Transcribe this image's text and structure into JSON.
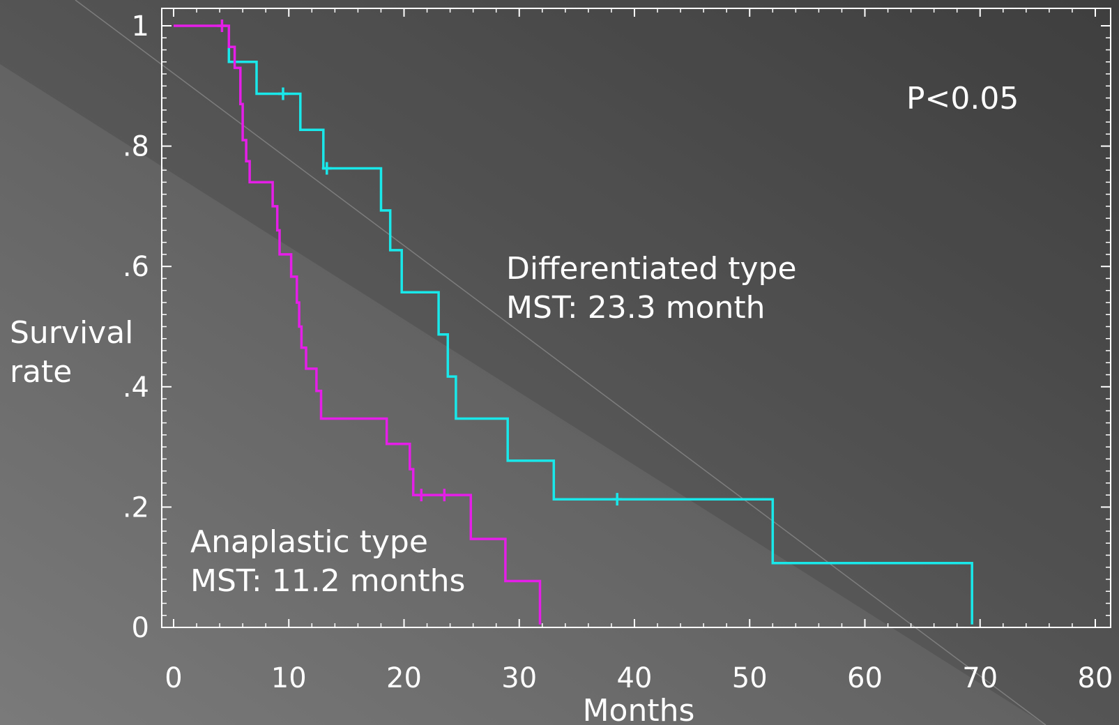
{
  "chart_data": {
    "type": "line",
    "step": true,
    "title": "",
    "xlabel": "Months",
    "ylabel": [
      "Survival",
      "rate"
    ],
    "xlim": [
      0,
      80
    ],
    "ylim": [
      0,
      1
    ],
    "xticks": [
      0,
      10,
      20,
      30,
      40,
      50,
      60,
      70,
      80
    ],
    "xtick_labels": [
      "0",
      "10",
      "20",
      "30",
      "40",
      "50",
      "60",
      "70",
      "80"
    ],
    "yticks": [
      0,
      0.2,
      0.4,
      0.6,
      0.8,
      1
    ],
    "ytick_labels": [
      "0",
      ".2",
      ".4",
      ".6",
      ".8",
      "1"
    ],
    "grid": false,
    "p_value": "P<0.05",
    "colors": {
      "background_light": "#7a7a7a",
      "background_dark": "#474747",
      "axis": "#ffffff",
      "differentiated": "#19e8ea",
      "anaplastic": "#e51ee8"
    },
    "series": [
      {
        "key": "differentiated",
        "color": "#19e8ea",
        "label_lines": [
          "Differentiated type",
          "MST: 23.3 month"
        ],
        "start_x": 4.8,
        "start_y": 0.965,
        "points": [
          [
            4.8,
            0.965
          ],
          [
            4.8,
            0.94
          ],
          [
            7.2,
            0.94
          ],
          [
            7.2,
            0.887
          ],
          [
            11.0,
            0.887
          ],
          [
            11.0,
            0.827
          ],
          [
            13.0,
            0.827
          ],
          [
            13.0,
            0.763
          ],
          [
            18.0,
            0.763
          ],
          [
            18.0,
            0.693
          ],
          [
            18.8,
            0.693
          ],
          [
            18.8,
            0.627
          ],
          [
            19.8,
            0.627
          ],
          [
            19.8,
            0.557
          ],
          [
            23.0,
            0.557
          ],
          [
            23.0,
            0.487
          ],
          [
            23.8,
            0.487
          ],
          [
            23.8,
            0.417
          ],
          [
            24.5,
            0.417
          ],
          [
            24.5,
            0.347
          ],
          [
            29.0,
            0.347
          ],
          [
            29.0,
            0.277
          ],
          [
            33.0,
            0.277
          ],
          [
            33.0,
            0.213
          ],
          [
            52.0,
            0.213
          ],
          [
            52.0,
            0.107
          ],
          [
            69.3,
            0.107
          ],
          [
            69.3,
            0.005
          ]
        ],
        "censored": [
          [
            9.5,
            0.887
          ],
          [
            13.3,
            0.763
          ],
          [
            38.5,
            0.213
          ]
        ]
      },
      {
        "key": "anaplastic",
        "color": "#e51ee8",
        "label_lines": [
          "Anaplastic type",
          "MST: 11.2 months"
        ],
        "start_x": 0,
        "start_y": 1.0,
        "points": [
          [
            0,
            1.0
          ],
          [
            4.8,
            1.0
          ],
          [
            4.8,
            0.965
          ],
          [
            5.3,
            0.965
          ],
          [
            5.3,
            0.93
          ],
          [
            5.8,
            0.93
          ],
          [
            5.8,
            0.87
          ],
          [
            6.0,
            0.87
          ],
          [
            6.0,
            0.81
          ],
          [
            6.3,
            0.81
          ],
          [
            6.3,
            0.775
          ],
          [
            6.6,
            0.775
          ],
          [
            6.6,
            0.74
          ],
          [
            8.6,
            0.74
          ],
          [
            8.6,
            0.7
          ],
          [
            9.0,
            0.7
          ],
          [
            9.0,
            0.66
          ],
          [
            9.2,
            0.66
          ],
          [
            9.2,
            0.62
          ],
          [
            10.2,
            0.62
          ],
          [
            10.2,
            0.583
          ],
          [
            10.7,
            0.583
          ],
          [
            10.7,
            0.54
          ],
          [
            10.9,
            0.54
          ],
          [
            10.9,
            0.5
          ],
          [
            11.1,
            0.5
          ],
          [
            11.1,
            0.465
          ],
          [
            11.5,
            0.465
          ],
          [
            11.5,
            0.43
          ],
          [
            12.4,
            0.43
          ],
          [
            12.4,
            0.393
          ],
          [
            12.8,
            0.393
          ],
          [
            12.8,
            0.347
          ],
          [
            18.5,
            0.347
          ],
          [
            18.5,
            0.305
          ],
          [
            20.5,
            0.305
          ],
          [
            20.5,
            0.263
          ],
          [
            20.8,
            0.263
          ],
          [
            20.8,
            0.22
          ],
          [
            25.8,
            0.22
          ],
          [
            25.8,
            0.147
          ],
          [
            28.8,
            0.147
          ],
          [
            28.8,
            0.077
          ],
          [
            31.8,
            0.077
          ],
          [
            31.8,
            0.005
          ]
        ],
        "censored": [
          [
            4.2,
            1.0
          ],
          [
            21.5,
            0.22
          ],
          [
            23.5,
            0.22
          ]
        ]
      }
    ]
  }
}
